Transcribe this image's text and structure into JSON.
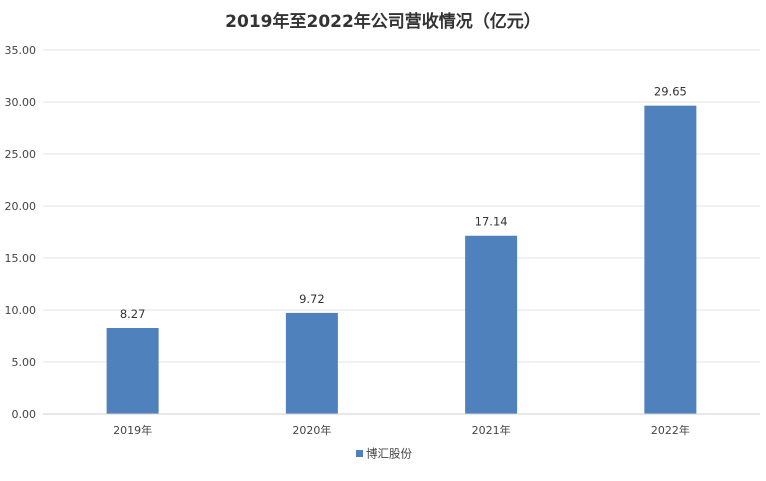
{
  "chart_data": {
    "type": "bar",
    "title": "2019年至2022年公司营收情况（亿元）",
    "categories": [
      "2019年",
      "2020年",
      "2021年",
      "2022年"
    ],
    "series": [
      {
        "name": "博汇股份",
        "values": [
          8.27,
          9.72,
          17.14,
          29.65
        ],
        "color": "#4f81bd"
      }
    ],
    "data_labels": [
      "8.27",
      "9.72",
      "17.14",
      "29.65"
    ],
    "y_ticks": [
      "0.00",
      "5.00",
      "10.00",
      "15.00",
      "20.00",
      "25.00",
      "30.00",
      "35.00"
    ],
    "ylim": [
      0,
      35
    ],
    "y_step": 5,
    "grid": true,
    "legend_position": "bottom",
    "xlabel": "",
    "ylabel": ""
  }
}
